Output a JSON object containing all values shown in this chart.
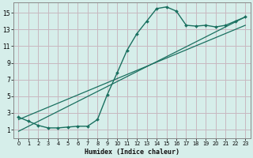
{
  "xlabel": "Humidex (Indice chaleur)",
  "bg_color": "#d6eeea",
  "grid_color": "#c8b8c0",
  "line_color": "#1a7060",
  "xlim": [
    -0.5,
    23.5
  ],
  "ylim": [
    0.0,
    16.2
  ],
  "xticks": [
    0,
    1,
    2,
    3,
    4,
    5,
    6,
    7,
    8,
    9,
    10,
    11,
    12,
    13,
    14,
    15,
    16,
    17,
    18,
    19,
    20,
    21,
    22,
    23
  ],
  "yticks": [
    1,
    3,
    5,
    7,
    9,
    11,
    13,
    15
  ],
  "curve1_x": [
    0,
    1,
    2,
    3,
    4,
    5,
    6,
    7,
    8,
    9,
    10,
    11,
    12,
    13,
    14,
    15,
    16,
    17,
    18,
    19,
    20,
    21,
    22,
    23
  ],
  "curve1_y": [
    2.5,
    2.0,
    1.5,
    1.2,
    1.2,
    1.3,
    1.4,
    1.4,
    2.2,
    5.2,
    7.8,
    10.5,
    12.5,
    14.0,
    15.5,
    15.7,
    15.2,
    13.5,
    13.4,
    13.5,
    13.3,
    13.5,
    14.0,
    14.5
  ],
  "line2_x": [
    0,
    23
  ],
  "line2_y": [
    0.8,
    14.5
  ],
  "line3_x": [
    0,
    23
  ],
  "line3_y": [
    2.2,
    13.5
  ],
  "xlabel_fontsize": 6.0,
  "ytick_fontsize": 5.5,
  "xtick_fontsize": 4.8
}
